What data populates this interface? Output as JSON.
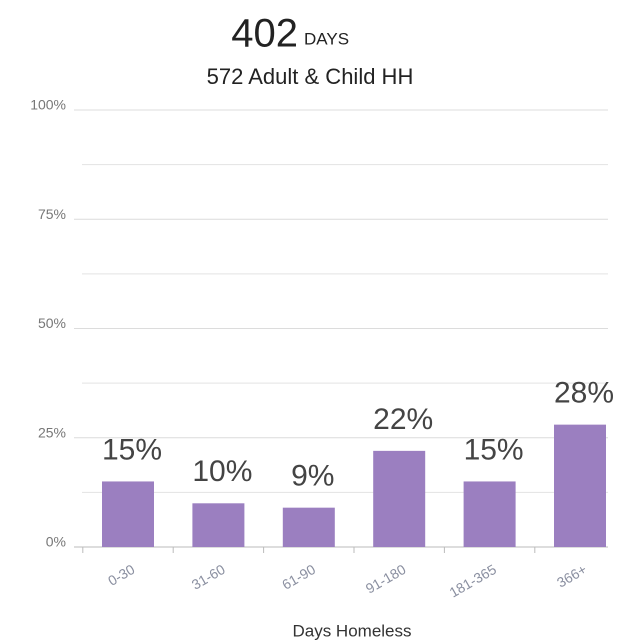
{
  "chart_data": {
    "type": "bar",
    "title": "402",
    "title_unit": "DAYS",
    "subtitle": "572 Adult & Child HH",
    "x_label": "Days Homeless",
    "categories": [
      "0-30",
      "31-60",
      "61-90",
      "91-180",
      "181-365",
      "366+"
    ],
    "values": [
      15,
      10,
      9,
      22,
      15,
      28
    ],
    "value_labels": [
      "15%",
      "10%",
      "9%",
      "22%",
      "15%",
      "28%"
    ],
    "color": "#9b7fc0",
    "ylim": [
      0,
      100
    ],
    "yticks": [
      {
        "value": 0,
        "label": "0%"
      },
      {
        "value": 25,
        "label": "25%"
      },
      {
        "value": 50,
        "label": "50%"
      },
      {
        "value": 75,
        "label": "75%"
      },
      {
        "value": 100,
        "label": "100%"
      }
    ],
    "minor_yticks": [
      12.5,
      37.5,
      62.5,
      87.5
    ],
    "grid": true
  }
}
